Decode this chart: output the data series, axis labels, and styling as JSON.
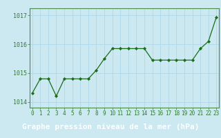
{
  "x": [
    0,
    1,
    2,
    3,
    4,
    5,
    6,
    7,
    8,
    9,
    10,
    11,
    12,
    13,
    14,
    15,
    16,
    17,
    18,
    19,
    20,
    21,
    22,
    23
  ],
  "y": [
    1014.3,
    1014.8,
    1014.8,
    1014.2,
    1014.8,
    1014.8,
    1014.8,
    1014.8,
    1015.1,
    1015.5,
    1015.85,
    1015.85,
    1015.85,
    1015.85,
    1015.85,
    1015.45,
    1015.45,
    1015.45,
    1015.45,
    1015.45,
    1015.45,
    1015.85,
    1016.1,
    1016.95
  ],
  "line_color": "#1a6b1a",
  "marker": "D",
  "marker_size": 2.2,
  "marker_color": "#1a6b1a",
  "bg_color": "#cce8f0",
  "grid_color": "#b0d8e8",
  "title": "Graphe pression niveau de la mer (hPa)",
  "title_fontsize": 8,
  "title_color": "#1a5c1a",
  "title_bg": "#4a8c4a",
  "ylim": [
    1013.8,
    1017.25
  ],
  "yticks": [
    1014,
    1015,
    1016,
    1017
  ],
  "xticks": [
    0,
    1,
    2,
    3,
    4,
    5,
    6,
    7,
    8,
    9,
    10,
    11,
    12,
    13,
    14,
    15,
    16,
    17,
    18,
    19,
    20,
    21,
    22,
    23
  ],
  "tick_fontsize": 5.5,
  "axis_color": "#2d7a2d",
  "spine_color": "#4a8c4a",
  "linewidth": 0.9
}
